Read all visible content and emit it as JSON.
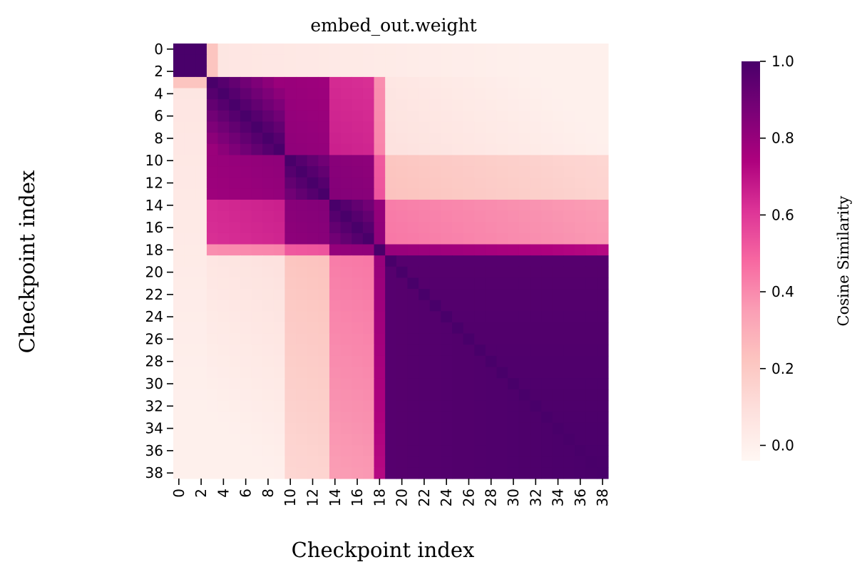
{
  "chart_data": {
    "type": "heatmap",
    "title": "embed_out.weight",
    "xlabel": "Checkpoint index",
    "ylabel": "Checkpoint index",
    "n": 39,
    "x_ticks": [
      0,
      2,
      4,
      6,
      8,
      10,
      12,
      14,
      16,
      18,
      20,
      22,
      24,
      26,
      28,
      30,
      32,
      34,
      36,
      38
    ],
    "y_ticks": [
      0,
      2,
      4,
      6,
      8,
      10,
      12,
      14,
      16,
      18,
      20,
      22,
      24,
      26,
      28,
      30,
      32,
      34,
      36,
      38
    ],
    "colorbar": {
      "label": "Cosine Similarity",
      "range": [
        -0.04,
        1.0
      ],
      "ticks": [
        0.0,
        0.2,
        0.4,
        0.6,
        0.8,
        1.0
      ],
      "tick_labels": [
        "0.0",
        "0.2",
        "0.4",
        "0.6",
        "0.8",
        "1.0"
      ],
      "colormap": "RdPu",
      "stops": [
        "#fff7f3",
        "#fde0dd",
        "#fcc5c0",
        "#fa9fb5",
        "#f768a1",
        "#dd3497",
        "#ae017e",
        "#7a0177",
        "#49006a"
      ]
    },
    "blocks": {
      "early_block_end": 2,
      "phase_a": [
        3,
        9
      ],
      "phase_b": [
        10,
        13
      ],
      "phase_c": [
        14,
        17
      ],
      "transition": 18,
      "late_block_start": 19
    }
  }
}
